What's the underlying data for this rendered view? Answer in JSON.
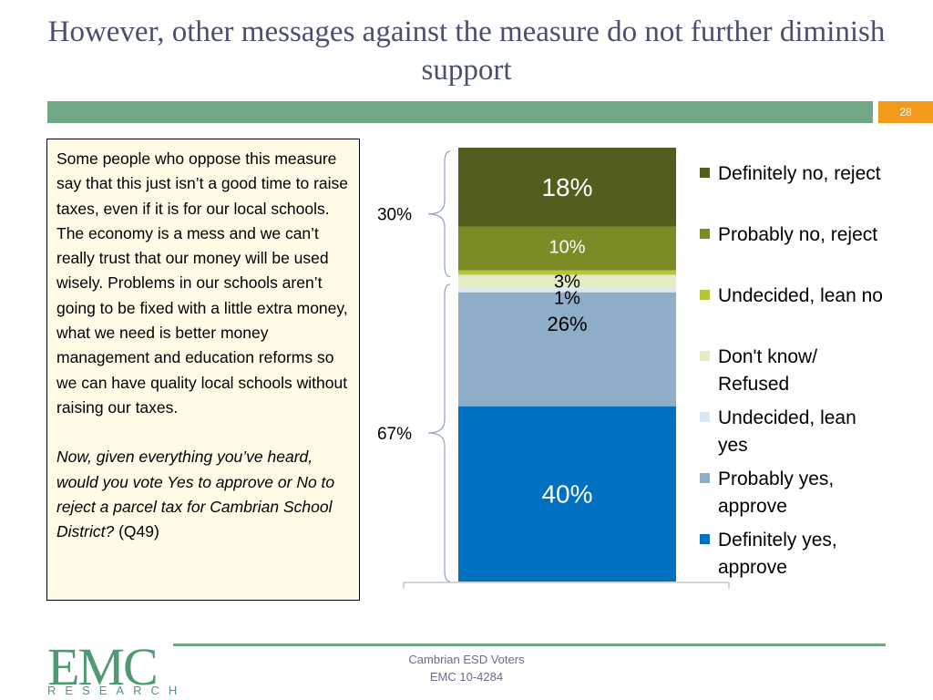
{
  "slide": {
    "title": "However, other messages against the measure do not further diminish support",
    "page_number": "28"
  },
  "message": {
    "body": "Some people who oppose this measure say that this just isn’t a good time to raise taxes, even if it is for our local schools. The economy is a mess and we can’t really trust that our money will be used wisely. Problems in our schools aren’t going to be fixed with a little extra money, what we need is better money management and education reforms so we can have quality local schools without raising our taxes.",
    "question": "Now, given everything you’ve heard, would you vote Yes to approve or No to reject a parcel tax for Cambrian School District?",
    "question_ref": " (Q49)"
  },
  "footer": {
    "line1": "Cambrian ESD Voters",
    "line2": "EMC 10-4284",
    "logo_main": "EMC",
    "logo_sub": "RESEARCH"
  },
  "chart_data": {
    "type": "bar",
    "stacked": true,
    "categories": [
      ""
    ],
    "ylim": [
      0,
      100
    ],
    "series": [
      {
        "name": "Definitely yes, approve",
        "value": 40,
        "label": "40%",
        "color": "#0070c0"
      },
      {
        "name": "Probably yes, approve",
        "value": 26,
        "label": "26%",
        "color": "#8eadc9"
      },
      {
        "name": "Undecided, lean yes",
        "value": 1,
        "label": "1%",
        "color": "#dce7f0"
      },
      {
        "name": "Don't know/ Refused",
        "value": 3,
        "label": "3%",
        "color": "#e3ecc4"
      },
      {
        "name": "Undecided, lean no",
        "value": 1,
        "label": "1%",
        "color": "#b7c43a"
      },
      {
        "name": "Probably no, reject",
        "value": 10,
        "label": "10%",
        "color": "#7d8b27"
      },
      {
        "name": "Definitely no, reject",
        "value": 18,
        "label": "18%",
        "color": "#525e1d"
      }
    ],
    "legend_order": [
      "Definitely no, reject",
      "Probably no, reject",
      "Undecided, lean no",
      "Don't know/ Refused",
      "Undecided, lean yes",
      "Probably yes, approve",
      "Definitely yes, approve"
    ],
    "legend_position": "right",
    "group_totals": [
      {
        "label": "30%",
        "value": 30,
        "group": "no"
      },
      {
        "label": "67%",
        "value": 67,
        "group": "yes"
      }
    ]
  }
}
